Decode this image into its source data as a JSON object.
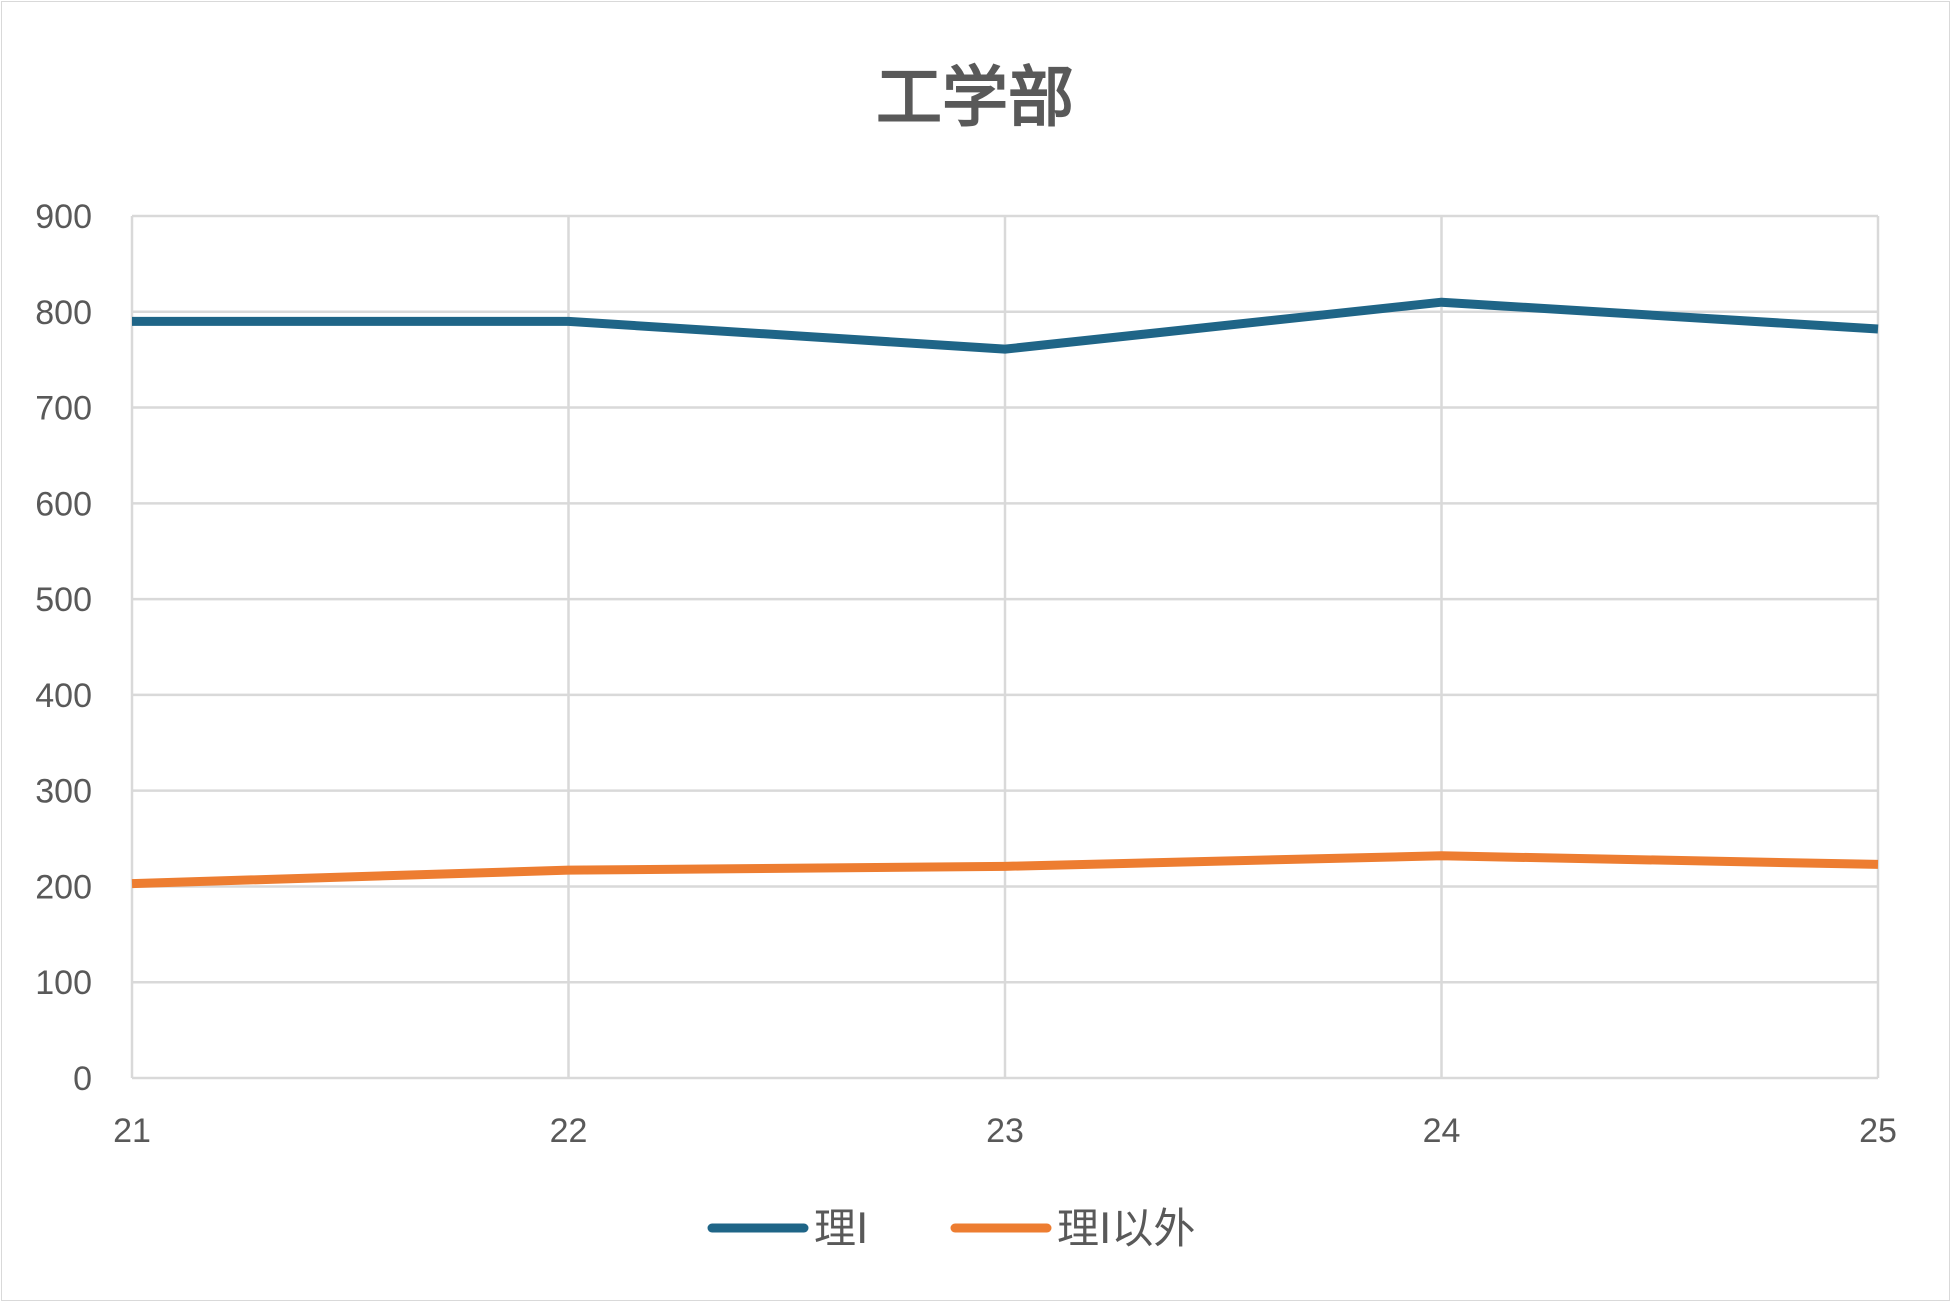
{
  "chart_data": {
    "type": "line",
    "title": "工学部",
    "xlabel": "",
    "ylabel": "",
    "categories": [
      "21",
      "22",
      "23",
      "24",
      "25"
    ],
    "ylim": [
      0,
      900
    ],
    "yticks": [
      "0",
      "100",
      "200",
      "300",
      "400",
      "500",
      "600",
      "700",
      "800",
      "900"
    ],
    "grid": true,
    "legend_position": "bottom",
    "series": [
      {
        "name": "理Ⅰ",
        "color": "#1f6587",
        "values": [
          790,
          790,
          761,
          810,
          782
        ]
      },
      {
        "name": "理Ⅰ以外",
        "color": "#ed7d31",
        "values": [
          203,
          217,
          221,
          232,
          223
        ]
      }
    ]
  }
}
